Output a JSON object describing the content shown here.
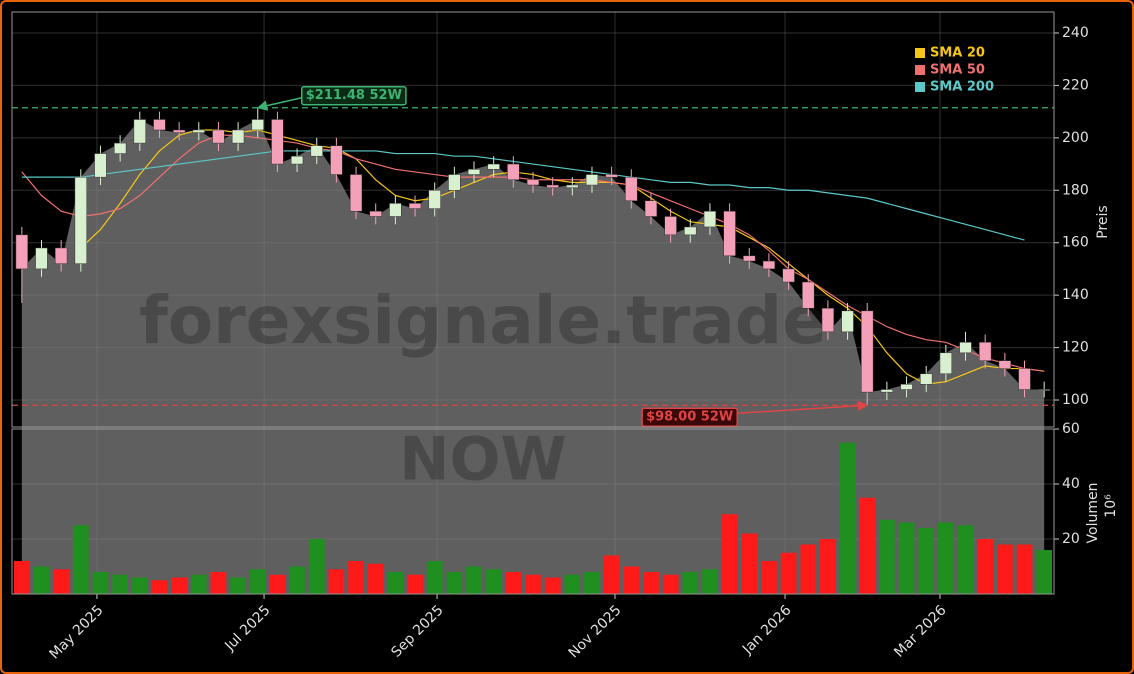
{
  "chart_data": [
    {
      "type": "candlestick",
      "watermark": "forexsignale.trade",
      "ticker": "NOW",
      "ylabel": "Preis",
      "open": [
        163,
        150,
        158,
        152,
        185,
        194,
        198,
        207,
        203,
        202,
        203,
        198,
        203,
        207,
        190,
        193,
        197,
        186,
        172,
        170,
        175,
        173,
        180,
        186,
        188,
        190,
        184,
        182,
        181,
        182,
        186,
        185,
        176,
        170,
        163,
        166,
        172,
        155,
        153,
        150,
        145,
        135,
        126,
        134,
        103,
        104,
        106,
        110,
        118,
        122,
        115,
        112,
        104
      ],
      "high": [
        166,
        161,
        161,
        188,
        197,
        201,
        210,
        210,
        206,
        206,
        206,
        206,
        211.48,
        210,
        196,
        200,
        200,
        189,
        175,
        178,
        178,
        183,
        189,
        191,
        193,
        193,
        187,
        185,
        185,
        189,
        189,
        188,
        179,
        173,
        169,
        175,
        175,
        158,
        156,
        153,
        148,
        138,
        137,
        137,
        107,
        109,
        113,
        121,
        126,
        125,
        118,
        115,
        107
      ],
      "low": [
        137,
        147,
        149,
        149,
        182,
        191,
        195,
        200,
        199,
        199,
        195,
        195,
        200,
        187,
        187,
        190,
        183,
        169,
        167,
        167,
        170,
        170,
        177,
        183,
        185,
        181,
        179,
        178,
        178,
        179,
        182,
        173,
        167,
        160,
        160,
        163,
        152,
        150,
        147,
        142,
        132,
        123,
        123,
        98,
        100,
        101,
        103,
        107,
        115,
        112,
        109,
        101,
        101
      ],
      "close": [
        150,
        158,
        152,
        185,
        194,
        198,
        207,
        203,
        202,
        203,
        198,
        203,
        207,
        190,
        193,
        197,
        186,
        172,
        170,
        175,
        173,
        180,
        186,
        188,
        190,
        184,
        182,
        181,
        182,
        186,
        185,
        176,
        170,
        163,
        166,
        172,
        155,
        153,
        150,
        145,
        135,
        126,
        134,
        103,
        104,
        106,
        110,
        118,
        122,
        115,
        112,
        104,
        104
      ],
      "up_color": "#d8f0d0",
      "down_color": "#f4a0b8",
      "area_color": "#5f5f5f",
      "ylim": [
        89.7,
        248
      ],
      "yticks": [
        100,
        120,
        140,
        160,
        180,
        200,
        220,
        240
      ],
      "grid": true,
      "legend": "upper right",
      "series": [
        {
          "name": "SMA 20",
          "color": "#f5c518",
          "values": [
            null,
            null,
            null,
            158,
            165,
            175,
            186,
            195,
            201,
            203,
            203,
            202,
            203,
            201,
            199,
            197,
            196,
            192,
            184,
            178,
            176,
            177,
            180,
            183,
            186,
            187,
            186,
            184,
            183,
            183,
            183,
            182,
            177,
            172,
            168,
            167,
            166,
            162,
            158,
            152,
            146,
            140,
            135,
            128,
            118,
            110,
            106,
            107,
            110,
            113,
            112,
            112,
            111
          ]
        },
        {
          "name": "SMA 50",
          "color": "#f07070",
          "values": [
            187,
            178,
            172,
            170,
            171,
            173,
            178,
            185,
            192,
            198,
            201,
            201,
            200,
            199,
            198,
            196,
            195,
            192,
            190,
            188,
            187,
            186,
            185,
            185,
            185,
            185,
            184,
            184,
            184,
            184,
            183,
            182,
            179,
            176,
            173,
            170,
            167,
            163,
            157,
            150,
            146,
            141,
            136,
            132,
            128,
            125,
            123,
            122,
            119,
            116,
            114,
            112,
            111
          ]
        },
        {
          "name": "SMA 200",
          "color": "#5cc8c8",
          "values": [
            185,
            185,
            185,
            185,
            186,
            187,
            188,
            189,
            190,
            191,
            192,
            193,
            194,
            195,
            195,
            195,
            195,
            195,
            195,
            194,
            194,
            194,
            193,
            193,
            192,
            191,
            190,
            189,
            188,
            187,
            186,
            185,
            184,
            183,
            183,
            182,
            182,
            181,
            181,
            180,
            180,
            179,
            178,
            177,
            175,
            173,
            171,
            169,
            167,
            165,
            163,
            161,
            null
          ]
        }
      ],
      "hlines": [
        {
          "label": "$211.48 52W",
          "value": 211.48,
          "index": 12,
          "color": "#3cb371"
        },
        {
          "label": "$98.00 52W",
          "value": 98.0,
          "index": 43,
          "color": "#e04545"
        }
      ]
    },
    {
      "type": "bar",
      "ylabel": "Volumen",
      "unit": "10⁶",
      "up_color": "#1f8f1f",
      "down_color": "#ff1a1a",
      "values": [
        12,
        10,
        9,
        25,
        8,
        7,
        6,
        5,
        6,
        7,
        8,
        6,
        9,
        7,
        10,
        20,
        9,
        12,
        11,
        8,
        7,
        12,
        8,
        10,
        9,
        8,
        7,
        6,
        7,
        8,
        14,
        10,
        8,
        7,
        8,
        9,
        29,
        22,
        12,
        15,
        18,
        20,
        55,
        35,
        27,
        26,
        24,
        26,
        25,
        20,
        18,
        18,
        16
      ],
      "ylim": [
        0,
        60
      ],
      "yticks": [
        20,
        40,
        60
      ],
      "xlim": [
        -0.5,
        52.5
      ],
      "xticks": [
        {
          "value": 3.82,
          "label": "May 2025"
        },
        {
          "value": 12.32,
          "label": "Jul 2025"
        },
        {
          "value": 21.12,
          "label": "Sep 2025"
        },
        {
          "value": 30.17,
          "label": "Nov 2025"
        },
        {
          "value": 38.82,
          "label": "Jan 2026"
        },
        {
          "value": 46.7,
          "label": "Mar 2026"
        }
      ]
    }
  ]
}
